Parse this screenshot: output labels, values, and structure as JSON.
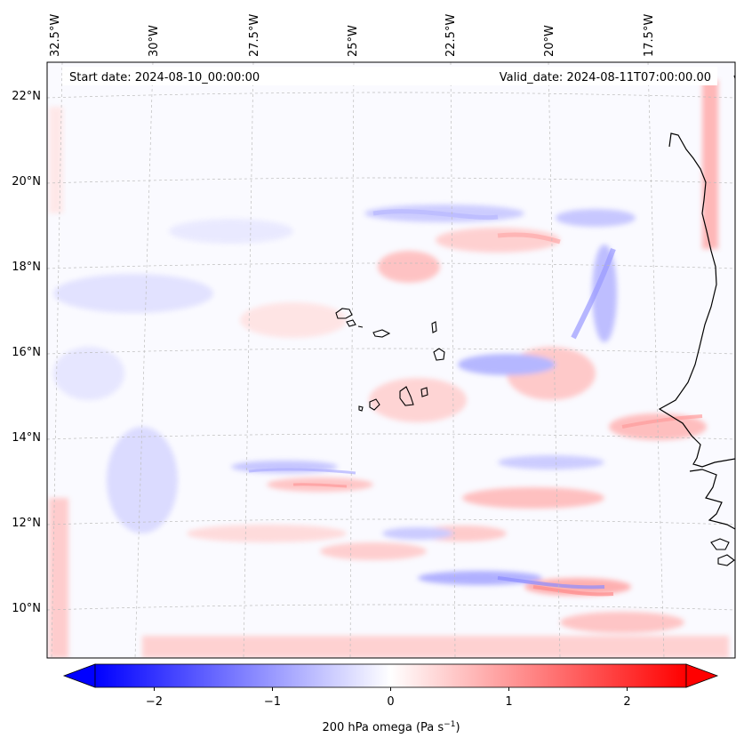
{
  "map": {
    "header": {
      "start_date": "Start date: 2024-08-10_00:00:00",
      "valid_date": "Valid_date: 2024-08-11T07:00:00.00"
    },
    "lon_labels": [
      "32.5°W",
      "30°W",
      "27.5°W",
      "25°W",
      "22.5°W",
      "20°W",
      "17.5°W"
    ],
    "lat_labels": [
      "22°N",
      "20°N",
      "18°N",
      "16°N",
      "14°N",
      "12°N",
      "10°N"
    ],
    "colorbar": {
      "label": "200 hPa omega (Pa s",
      "label_sup": "−1",
      "label_end": ")",
      "ticks": [
        "−2",
        "−1",
        "0",
        "1",
        "2"
      ],
      "min": -2.5,
      "max": 2.5,
      "cmap": "bwr",
      "colors": {
        "neg": "#0000ff",
        "mid": "#ffffff",
        "pos": "#ff0000"
      }
    }
  }
}
